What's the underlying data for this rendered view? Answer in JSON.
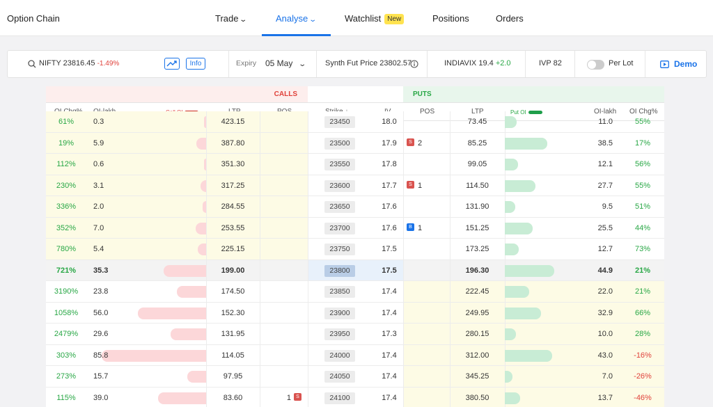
{
  "nav": {
    "brand": "Option Chain",
    "items": [
      {
        "label": "Trade",
        "chev": true
      },
      {
        "label": "Analyse",
        "chev": true,
        "active": true
      },
      {
        "label": "Watchlist",
        "badge": "New"
      },
      {
        "label": "Positions"
      },
      {
        "label": "Orders"
      }
    ]
  },
  "infobar": {
    "symbol": "NIFTY",
    "price": "23816.45",
    "change": "-1.49%",
    "info_label": "Info",
    "expiry_label": "Expiry",
    "expiry_value": "05 May",
    "synth_label": "Synth Fut Price",
    "synth_value": "23802.57",
    "vix_label": "INDIAVIX",
    "vix_value": "19.4",
    "vix_change": "+2.0",
    "ivp_label": "IVP",
    "ivp_value": "82",
    "perlot_label": "Per Lot",
    "demo_label": "Demo"
  },
  "table": {
    "calls_label": "CALLS",
    "puts_label": "PUTS",
    "headers": {
      "oi_chg": "OI Chg%",
      "oi_lakh": "OI-lakh",
      "call_oi": "Call OI",
      "ltp": "LTP",
      "pos": "POS",
      "strike": "Strike",
      "iv": "IV",
      "put_oi": "Put OI"
    },
    "colors": {
      "call": "#e0413a",
      "put": "#28a745",
      "itm": "#fdfbe5"
    },
    "rows": [
      {
        "c_chg": "61%",
        "c_oi": "0.3",
        "c_oi_frac": 0.02,
        "c_ltp": "423.15",
        "c_pos": "",
        "strike": "23450",
        "iv": "18.0",
        "p_pos": "",
        "p_pos_type": "",
        "p_ltp": "73.45",
        "p_oi_frac": 0.23,
        "p_oi": "11.0",
        "p_chg": "55%",
        "p_chg_neg": false,
        "call_itm": true,
        "put_itm": false
      },
      {
        "c_chg": "19%",
        "c_oi": "5.9",
        "c_oi_frac": 0.09,
        "c_ltp": "387.80",
        "c_pos": "",
        "strike": "23500",
        "iv": "17.9",
        "p_pos": "2",
        "p_pos_type": "S",
        "p_ltp": "85.25",
        "p_oi_frac": 0.8,
        "p_oi": "38.5",
        "p_chg": "17%",
        "p_chg_neg": false,
        "call_itm": true,
        "put_itm": false
      },
      {
        "c_chg": "112%",
        "c_oi": "0.6",
        "c_oi_frac": 0.02,
        "c_ltp": "351.30",
        "c_pos": "",
        "strike": "23550",
        "iv": "17.8",
        "p_pos": "",
        "p_pos_type": "",
        "p_ltp": "99.05",
        "p_oi_frac": 0.25,
        "p_oi": "12.1",
        "p_chg": "56%",
        "p_chg_neg": false,
        "call_itm": true,
        "put_itm": false
      },
      {
        "c_chg": "230%",
        "c_oi": "3.1",
        "c_oi_frac": 0.05,
        "c_ltp": "317.25",
        "c_pos": "",
        "strike": "23600",
        "iv": "17.7",
        "p_pos": "1",
        "p_pos_type": "S",
        "p_ltp": "114.50",
        "p_oi_frac": 0.58,
        "p_oi": "27.7",
        "p_chg": "55%",
        "p_chg_neg": false,
        "call_itm": true,
        "put_itm": false
      },
      {
        "c_chg": "336%",
        "c_oi": "2.0",
        "c_oi_frac": 0.03,
        "c_ltp": "284.55",
        "c_pos": "",
        "strike": "23650",
        "iv": "17.6",
        "p_pos": "",
        "p_pos_type": "",
        "p_ltp": "131.90",
        "p_oi_frac": 0.2,
        "p_oi": "9.5",
        "p_chg": "51%",
        "p_chg_neg": false,
        "call_itm": true,
        "put_itm": false
      },
      {
        "c_chg": "352%",
        "c_oi": "7.0",
        "c_oi_frac": 0.1,
        "c_ltp": "253.55",
        "c_pos": "",
        "strike": "23700",
        "iv": "17.6",
        "p_pos": "1",
        "p_pos_type": "B",
        "p_ltp": "151.25",
        "p_oi_frac": 0.53,
        "p_oi": "25.5",
        "p_chg": "44%",
        "p_chg_neg": false,
        "call_itm": true,
        "put_itm": false
      },
      {
        "c_chg": "780%",
        "c_oi": "5.4",
        "c_oi_frac": 0.08,
        "c_ltp": "225.15",
        "c_pos": "",
        "strike": "23750",
        "iv": "17.5",
        "p_pos": "",
        "p_pos_type": "",
        "p_ltp": "173.25",
        "p_oi_frac": 0.26,
        "p_oi": "12.7",
        "p_chg": "73%",
        "p_chg_neg": false,
        "call_itm": true,
        "put_itm": false
      },
      {
        "c_chg": "721%",
        "c_oi": "35.3",
        "c_oi_frac": 0.41,
        "c_ltp": "199.00",
        "c_pos": "",
        "strike": "23800",
        "iv": "17.5",
        "p_pos": "",
        "p_pos_type": "",
        "p_ltp": "196.30",
        "p_oi_frac": 0.93,
        "p_oi": "44.9",
        "p_chg": "21%",
        "p_chg_neg": false,
        "call_itm": false,
        "put_itm": false,
        "atm": true
      },
      {
        "c_chg": "3190%",
        "c_oi": "23.8",
        "c_oi_frac": 0.28,
        "c_ltp": "174.50",
        "c_pos": "",
        "strike": "23850",
        "iv": "17.4",
        "p_pos": "",
        "p_pos_type": "",
        "p_ltp": "222.45",
        "p_oi_frac": 0.46,
        "p_oi": "22.0",
        "p_chg": "21%",
        "p_chg_neg": false,
        "call_itm": false,
        "put_itm": true
      },
      {
        "c_chg": "1058%",
        "c_oi": "56.0",
        "c_oi_frac": 0.65,
        "c_ltp": "152.30",
        "c_pos": "",
        "strike": "23900",
        "iv": "17.4",
        "p_pos": "",
        "p_pos_type": "",
        "p_ltp": "249.95",
        "p_oi_frac": 0.68,
        "p_oi": "32.9",
        "p_chg": "66%",
        "p_chg_neg": false,
        "call_itm": false,
        "put_itm": true
      },
      {
        "c_chg": "2479%",
        "c_oi": "29.6",
        "c_oi_frac": 0.34,
        "c_ltp": "131.95",
        "c_pos": "",
        "strike": "23950",
        "iv": "17.3",
        "p_pos": "",
        "p_pos_type": "",
        "p_ltp": "280.15",
        "p_oi_frac": 0.21,
        "p_oi": "10.0",
        "p_chg": "28%",
        "p_chg_neg": false,
        "call_itm": false,
        "put_itm": true
      },
      {
        "c_chg": "303%",
        "c_oi": "85.8",
        "c_oi_frac": 1.0,
        "c_ltp": "114.05",
        "c_pos": "",
        "strike": "24000",
        "iv": "17.4",
        "p_pos": "",
        "p_pos_type": "",
        "p_ltp": "312.00",
        "p_oi_frac": 0.9,
        "p_oi": "43.0",
        "p_chg": "-16%",
        "p_chg_neg": true,
        "call_itm": false,
        "put_itm": true
      },
      {
        "c_chg": "273%",
        "c_oi": "15.7",
        "c_oi_frac": 0.18,
        "c_ltp": "97.95",
        "c_pos": "",
        "strike": "24050",
        "iv": "17.4",
        "p_pos": "",
        "p_pos_type": "",
        "p_ltp": "345.25",
        "p_oi_frac": 0.15,
        "p_oi": "7.0",
        "p_chg": "-26%",
        "p_chg_neg": true,
        "call_itm": false,
        "put_itm": true
      },
      {
        "c_chg": "115%",
        "c_oi": "39.0",
        "c_oi_frac": 0.46,
        "c_ltp": "83.60",
        "c_pos": "1",
        "c_pos_type": "S",
        "strike": "24100",
        "iv": "17.4",
        "p_pos": "",
        "p_pos_type": "",
        "p_ltp": "380.50",
        "p_oi_frac": 0.29,
        "p_oi": "13.7",
        "p_chg": "-46%",
        "p_chg_neg": true,
        "call_itm": false,
        "put_itm": true
      }
    ]
  }
}
